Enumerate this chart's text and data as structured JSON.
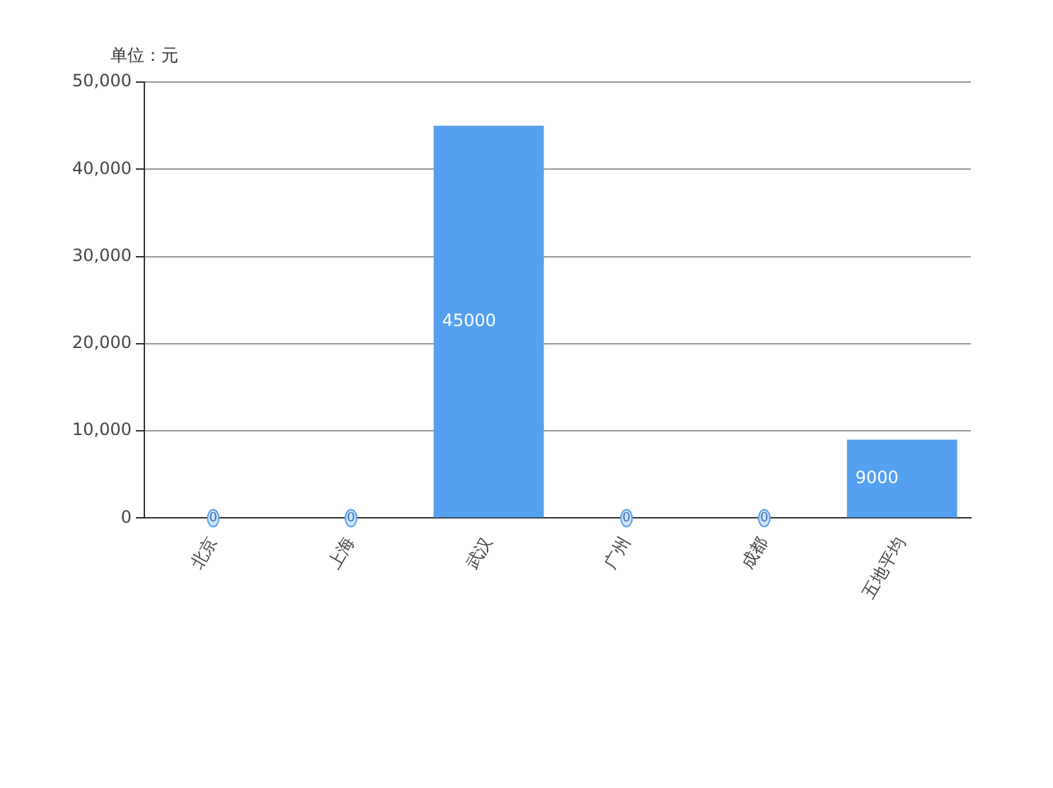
{
  "chart_data": {
    "type": "bar",
    "ylabel": "单位：元",
    "categories": [
      "北京",
      "上海",
      "武汉",
      "广州",
      "成都",
      "五地平均"
    ],
    "values": [
      0,
      0,
      45000,
      0,
      0,
      9000
    ],
    "color": "#55a0f0",
    "ylim": [
      0,
      50000
    ],
    "yticks": [
      {
        "value": 0,
        "label": "0"
      },
      {
        "value": 10000,
        "label": "10,000"
      },
      {
        "value": 20000,
        "label": "20,000"
      },
      {
        "value": 30000,
        "label": "30,000"
      },
      {
        "value": 40000,
        "label": "40,000"
      },
      {
        "value": 50000,
        "label": "50,000"
      }
    ],
    "grid": "y",
    "data_labels": true
  }
}
